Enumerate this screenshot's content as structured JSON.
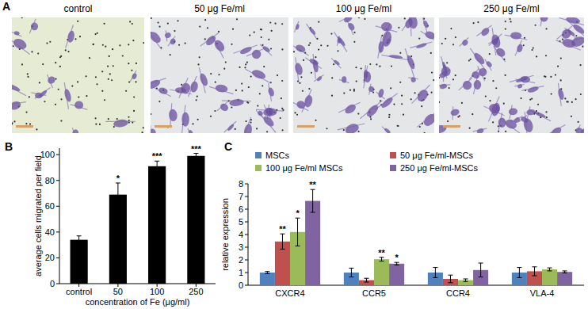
{
  "panel_a": {
    "label": "A",
    "titles": [
      "control",
      "50 μg Fe/ml",
      "100 μg Fe/ml",
      "250 μg Fe/ml"
    ]
  },
  "chart_data": [
    {
      "type": "bar",
      "annotations": [
        "B"
      ],
      "categories": [
        "control",
        "50",
        "100",
        "250"
      ],
      "values": [
        34,
        69,
        91,
        99
      ],
      "errors": [
        3,
        9,
        4,
        2
      ],
      "significance": [
        null,
        "*",
        "***",
        "***"
      ],
      "color": "#000000",
      "ylim": [
        0,
        105
      ],
      "yticks": [
        0,
        20,
        40,
        60,
        80,
        100
      ],
      "x_label": "concentration of Fe (μg/ml)",
      "y_label": "average cells migrated per field"
    },
    {
      "type": "bar",
      "annotations": [
        "C"
      ],
      "categories": [
        "CXCR4",
        "CCR5",
        "CCR4",
        "VLA-4"
      ],
      "series": [
        {
          "name": "MSCs",
          "color": "#4f81bd",
          "values": [
            1,
            1,
            1,
            1
          ],
          "errors": [
            0.08,
            0.35,
            0.4,
            0.4
          ],
          "significance": [
            null,
            null,
            null,
            null
          ]
        },
        {
          "name": "50 μg Fe/ml-MSCs",
          "color": "#c0504d",
          "values": [
            3.45,
            0.4,
            0.5,
            1.1
          ],
          "errors": [
            0.6,
            0.15,
            0.3,
            0.35
          ],
          "significance": [
            "**",
            null,
            null,
            null
          ]
        },
        {
          "name": "100 μg Fe/ml MSCs",
          "color": "#9bbb59",
          "values": [
            4.2,
            2.05,
            0.4,
            1.25
          ],
          "errors": [
            1.1,
            0.15,
            0.1,
            0.12
          ],
          "significance": [
            "*",
            "**",
            null,
            null
          ]
        },
        {
          "name": "250 μg Fe/ml-MSCs",
          "color": "#8064a2",
          "values": [
            6.65,
            1.7,
            1.2,
            1.05
          ],
          "errors": [
            0.9,
            0.1,
            0.55,
            0.08
          ],
          "significance": [
            "**",
            "*",
            null,
            null
          ]
        }
      ],
      "legend": "top",
      "ylim": [
        0,
        8
      ],
      "yticks": [
        0,
        1,
        2,
        3,
        4,
        5,
        6,
        7,
        8
      ],
      "y_label": "relative expression"
    }
  ]
}
